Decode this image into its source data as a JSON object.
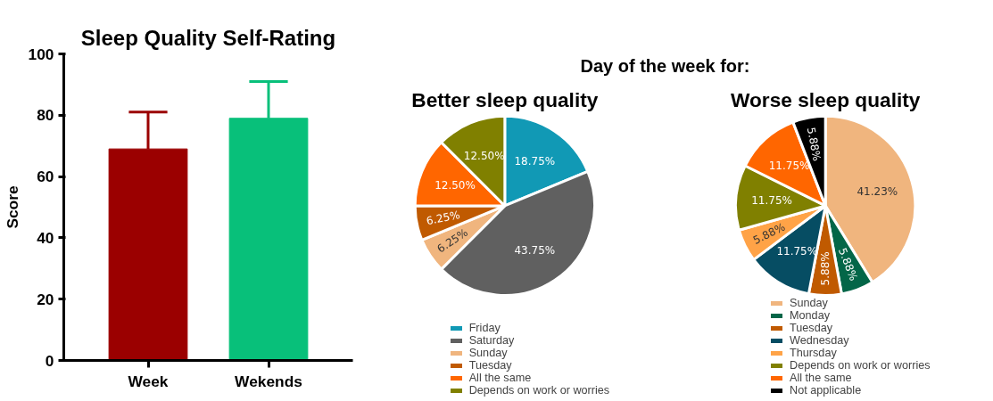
{
  "chart_data": [
    {
      "type": "bar",
      "title": "Sleep Quality Self-Rating",
      "ylabel": "Score",
      "categories": [
        "Week",
        "Wekends"
      ],
      "values": [
        69,
        79
      ],
      "colors": [
        "#9b0000",
        "#08c07a"
      ],
      "errors": [
        [
          69,
          81
        ],
        [
          79,
          91
        ]
      ],
      "ylim": [
        0,
        100
      ],
      "yticks": [
        0,
        20,
        40,
        60,
        80,
        100
      ],
      "grid": false
    },
    {
      "type": "pie",
      "title": "Better sleep quality",
      "annotations": [
        "Day of the week for:"
      ],
      "legend": "bottom",
      "categories": [
        "Friday",
        "Saturday",
        "Sunday",
        "Tuesday",
        "All the same",
        "Depends on work or worries"
      ],
      "values": [
        18.75,
        43.75,
        6.25,
        6.25,
        12.5,
        12.5
      ],
      "value_labels": [
        "18.75%",
        "43.75%",
        "6.25%",
        "6.25%",
        "12.50%",
        "12.50%"
      ],
      "colors": [
        "#1199b5",
        "#606060",
        "#f0b57e",
        "#c05a00",
        "#ff6600",
        "#808000"
      ]
    },
    {
      "type": "pie",
      "title": "Worse sleep quality",
      "legend": "bottom",
      "categories": [
        "Sunday",
        "Monday",
        "Tuesday",
        "Wednesday",
        "Thursday",
        "Depends on work or worries",
        "All the same",
        "Not applicable"
      ],
      "values": [
        41.23,
        5.88,
        5.88,
        11.75,
        5.88,
        11.75,
        11.75,
        5.88
      ],
      "value_labels": [
        "41.23%",
        "5.88%",
        "5.88%",
        "11.75%",
        "5.88%",
        "11.75%",
        "11.75%",
        "5.88%"
      ],
      "colors": [
        "#f0b57e",
        "#036648",
        "#c05a00",
        "#064d63",
        "#ffa347",
        "#808000",
        "#ff6600",
        "#000000"
      ]
    }
  ]
}
